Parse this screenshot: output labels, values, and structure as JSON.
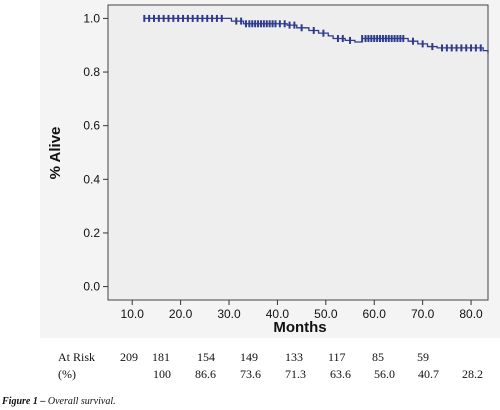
{
  "chart_data": {
    "type": "line",
    "xlabel": "Months",
    "ylabel": "% Alive",
    "xlim": [
      5,
      83.5
    ],
    "ylim": [
      -0.05,
      1.05
    ],
    "x_ticks": [
      10.0,
      20.0,
      30.0,
      40.0,
      50.0,
      60.0,
      70.0,
      80.0
    ],
    "x_tick_labels": [
      "10.0",
      "20.0",
      "30.0",
      "40.0",
      "50.0",
      "60.0",
      "70.0",
      "80.0"
    ],
    "y_ticks": [
      0.0,
      0.2,
      0.4,
      0.6,
      0.8,
      1.0
    ],
    "y_tick_labels": [
      "0.0",
      "0.2",
      "0.4",
      "0.6",
      "0.8",
      "1.0"
    ],
    "grid": false,
    "line_color": "#2e3a8c",
    "plot_background": "#eeeeee",
    "series": [
      {
        "steps": [
          [
            12.5,
            1.0
          ],
          [
            30.5,
            0.99
          ],
          [
            33.0,
            0.98
          ],
          [
            42.0,
            0.975
          ],
          [
            44.0,
            0.965
          ],
          [
            46.5,
            0.955
          ],
          [
            48.5,
            0.945
          ],
          [
            50.5,
            0.935
          ],
          [
            51.5,
            0.925
          ],
          [
            54.0,
            0.918
          ],
          [
            56.0,
            0.912
          ],
          [
            57.5,
            0.925
          ],
          [
            67.0,
            0.915
          ],
          [
            69.0,
            0.905
          ],
          [
            71.0,
            0.895
          ],
          [
            73.0,
            0.89
          ],
          [
            82.5,
            0.88
          ],
          [
            83.5,
            0.87
          ]
        ],
        "censored": [
          12.5,
          13.5,
          14.5,
          15.5,
          16.5,
          17.5,
          18.5,
          19.5,
          20.5,
          21.5,
          22.5,
          23.5,
          24.5,
          25.5,
          26.5,
          27.5,
          28.5,
          31.5,
          32.5,
          33.5,
          34.2,
          34.8,
          35.4,
          36.0,
          36.6,
          37.2,
          37.8,
          38.4,
          39.0,
          39.6,
          40.5,
          41.5,
          42.5,
          43.5,
          45.0,
          47.5,
          49.5,
          52.5,
          53.5,
          55.0,
          57.5,
          58.2,
          58.8,
          59.4,
          60.0,
          60.6,
          61.2,
          61.8,
          62.4,
          63.0,
          63.6,
          64.2,
          64.8,
          65.4,
          66.0,
          68.0,
          70.0,
          72.0,
          74.0,
          75.0,
          76.0,
          77.0,
          78.0,
          79.0,
          80.0,
          81.0,
          82.0
        ]
      }
    ]
  },
  "risk_table": {
    "row1_label": "At Risk",
    "row1_values": [
      "209",
      "181",
      "154",
      "149",
      "133",
      "117",
      "85",
      "59"
    ],
    "row2_label": "(%)",
    "row2_values": [
      "100",
      "86.6",
      "73.6",
      "71.3",
      "63.6",
      "56.0",
      "40.7",
      "28.2"
    ]
  },
  "caption": {
    "label": "Figure 1 –",
    "text": " Overall survival."
  }
}
